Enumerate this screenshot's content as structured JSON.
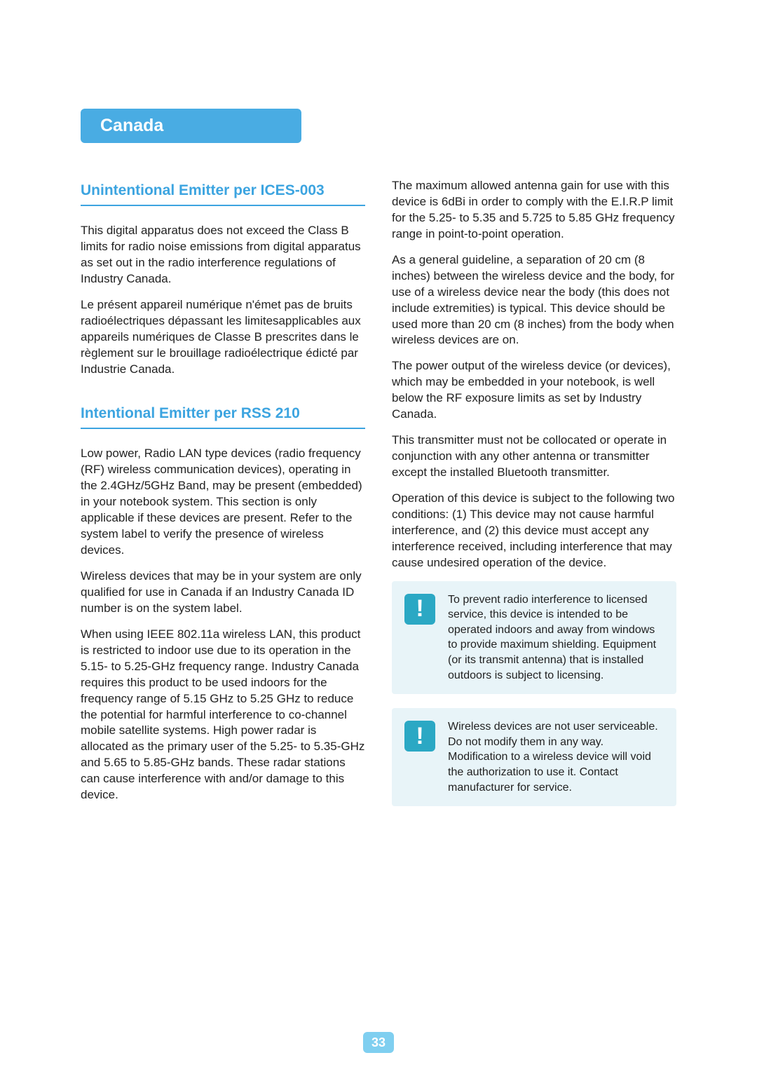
{
  "header": {
    "title": "Canada"
  },
  "left": {
    "section1": {
      "title": "Unintentional Emitter per ICES-003",
      "p1": "This digital apparatus does not exceed the Class B limits for radio noise emissions from digital apparatus as set out in the radio interference regulations of Industry Canada.",
      "p2": "Le présent appareil numérique n'émet pas de bruits radioélectriques dépassant les limitesapplicables aux appareils numériques de Classe B prescrites dans le règlement sur le brouillage radioélectrique édicté par Industrie Canada."
    },
    "section2": {
      "title": "Intentional Emitter per RSS 210",
      "p1": "Low power, Radio LAN type devices (radio frequency (RF) wireless communication devices), operating in the 2.4GHz/5GHz Band, may be present (embedded) in your notebook system. This section is only applicable if these devices are present. Refer to the system label to verify the presence of wireless devices.",
      "p2": "Wireless devices that may be in your system are only qualified for use in Canada if an Industry Canada ID number is on the system label.",
      "p3": "When using IEEE 802.11a wireless LAN, this product is restricted to indoor use due to its operation in the 5.15- to 5.25-GHz frequency range. Industry Canada requires this product to be used indoors for the frequency range of 5.15 GHz to 5.25 GHz to reduce the potential for harmful interference to co-channel mobile satellite systems. High power radar is allocated as the primary user of the 5.25- to 5.35-GHz and 5.65 to 5.85-GHz bands. These radar stations can cause interference with and/or damage to this device."
    }
  },
  "right": {
    "p1": "The maximum allowed antenna gain for use with this device is 6dBi in order to comply with the E.I.R.P limit for the 5.25- to 5.35 and 5.725 to 5.85 GHz frequency range in point-to-point operation.",
    "p2": "As a general guideline, a separation of 20 cm (8 inches) between the wireless device and the body, for use of a wireless device near the body (this does not include extremities) is typical. This device should be used more than 20 cm (8 inches) from the body when wireless devices are on.",
    "p3": "The power output of the wireless device (or devices), which may be embedded in your notebook, is well below the RF exposure limits as set by Industry Canada.",
    "p4": "This transmitter must not be collocated or operate in conjunction with any other antenna or transmitter except the installed Bluetooth transmitter.",
    "p5": "Operation of this device is subject to the following two conditions: (1) This device may not cause harmful interference, and (2) this device must accept any interference received, including interference that may cause undesired operation of the device.",
    "note1": "To prevent radio interference to licensed service, this device is intended to be operated indoors and away from windows to provide maximum shielding. Equipment (or its transmit antenna) that is installed outdoors is subject to licensing.",
    "note2": "Wireless devices are not user serviceable. Do not modify them in any way. Modification to a wireless device will void the authorization to use it. Contact manufacturer for service."
  },
  "page": {
    "number": "33"
  },
  "style": {
    "accent": "#3ca4e0",
    "pill_bg": "#49ace3",
    "note_bg": "#e8f4f8",
    "note_icon_bg": "#2ba8c4",
    "page_bg": "#7fcff0",
    "text_color": "#222222",
    "body_fontsize": 17,
    "title_fontsize": 21,
    "header_fontsize": 25
  }
}
